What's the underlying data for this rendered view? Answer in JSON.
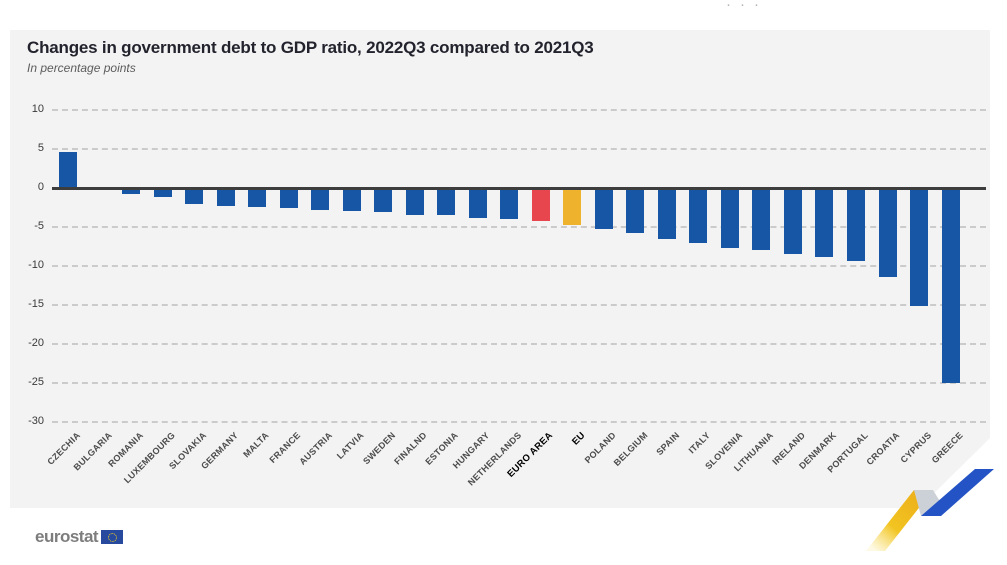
{
  "header": {
    "menu_dots": "···"
  },
  "chart_data": {
    "type": "bar",
    "title": "Changes in government debt to GDP ratio, 2022Q3 compared to 2021Q3",
    "subtitle": "In percentage points",
    "unit": "percentage points",
    "ylim": [
      -30,
      10
    ],
    "yticks": [
      10,
      5,
      0,
      -5,
      -10,
      -15,
      -20,
      -25,
      -30
    ],
    "grid": "horizontal dashed gridlines, solid dark zero line",
    "legend": "none",
    "colors": {
      "bar_default": "#1756a4",
      "bar_euro_area": "#e8464e",
      "bar_eu": "#eeb22c",
      "zero_line": "#3d3d3d",
      "gridline": "#cbcbcb",
      "card_background": "#f3f3f3"
    },
    "bars": [
      {
        "label": "CZECHIA",
        "value": 4.6
      },
      {
        "label": "BULGARIA",
        "value": -0.3
      },
      {
        "label": "ROMANIA",
        "value": -0.8
      },
      {
        "label": "LUXEMBOURG",
        "value": -1.1
      },
      {
        "label": "SLOVAKIA",
        "value": -2.1
      },
      {
        "label": "GERMANY",
        "value": -2.3
      },
      {
        "label": "MALTA",
        "value": -2.4
      },
      {
        "label": "FRANCE",
        "value": -2.5
      },
      {
        "label": "AUSTRIA",
        "value": -2.8
      },
      {
        "label": "LATVIA",
        "value": -2.9
      },
      {
        "label": "SWEDEN",
        "value": -3.1
      },
      {
        "label": "FINALND",
        "value": -3.4
      },
      {
        "label": "ESTONIA",
        "value": -3.5
      },
      {
        "label": "HUNGARY",
        "value": -3.8
      },
      {
        "label": "NETHERLANDS",
        "value": -4.0
      },
      {
        "label": "EURO AREA",
        "value": -4.2,
        "color": "#e8464e",
        "emphasis": true
      },
      {
        "label": "EU",
        "value": -4.8,
        "color": "#eeb22c",
        "emphasis": true
      },
      {
        "label": "POLAND",
        "value": -5.3
      },
      {
        "label": "BELGIUM",
        "value": -5.8
      },
      {
        "label": "SPAIN",
        "value": -6.6
      },
      {
        "label": "ITALY",
        "value": -7.1
      },
      {
        "label": "SLOVENIA",
        "value": -7.7
      },
      {
        "label": "LITHUANIA",
        "value": -7.9
      },
      {
        "label": "IRELAND",
        "value": -8.4
      },
      {
        "label": "DENMARK",
        "value": -8.9
      },
      {
        "label": "PORTUGAL",
        "value": -9.3
      },
      {
        "label": "CROATIA",
        "value": -11.4
      },
      {
        "label": "CYPRUS",
        "value": -15.1
      },
      {
        "label": "GREECE",
        "value": -25.0
      }
    ]
  },
  "footer": {
    "logo_text": "eurostat"
  }
}
